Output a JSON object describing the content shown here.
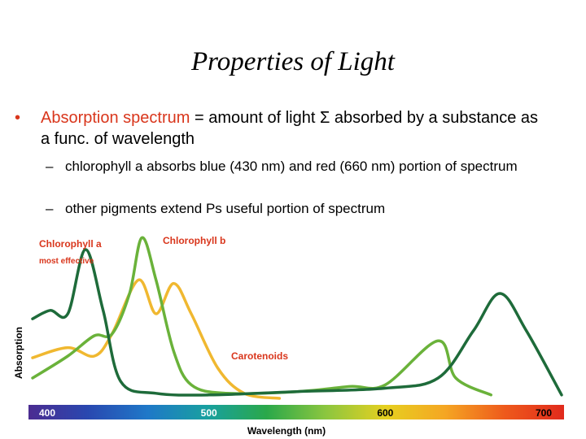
{
  "slide": {
    "title": "Properties of Light",
    "bullet1": {
      "highlight": "Absorption spectrum",
      "rest": " = amount of light Σ absorbed by a substance as a func. of wavelength"
    },
    "sub_bullets": [
      "chlorophyll a absorbs blue (430 nm) and red (660 nm) portion of spectrum",
      "other pigments extend Ps useful portion of spectrum"
    ],
    "dash": "–",
    "bullet_glyph": "•"
  },
  "chart_data": {
    "type": "line",
    "xlabel": "Wavelength (nm)",
    "ylabel": "Absorption",
    "x_ticks": [
      "400",
      "500",
      "600",
      "700"
    ],
    "xlim": [
      400,
      700
    ],
    "series": [
      {
        "name": "Chlorophyll a",
        "note": "most effective",
        "color": "#1e6b3a",
        "points": [
          [
            400,
            0.47
          ],
          [
            410,
            0.52
          ],
          [
            420,
            0.5
          ],
          [
            430,
            0.88
          ],
          [
            440,
            0.52
          ],
          [
            450,
            0.1
          ],
          [
            470,
            0.03
          ],
          [
            500,
            0.02
          ],
          [
            550,
            0.04
          ],
          [
            600,
            0.06
          ],
          [
            630,
            0.12
          ],
          [
            650,
            0.4
          ],
          [
            665,
            0.62
          ],
          [
            680,
            0.4
          ],
          [
            700,
            0.02
          ]
        ]
      },
      {
        "name": "Chlorophyll b",
        "color": "#6ab23a",
        "points": [
          [
            400,
            0.12
          ],
          [
            420,
            0.25
          ],
          [
            435,
            0.37
          ],
          [
            445,
            0.38
          ],
          [
            455,
            0.62
          ],
          [
            462,
            0.95
          ],
          [
            470,
            0.7
          ],
          [
            480,
            0.28
          ],
          [
            490,
            0.08
          ],
          [
            510,
            0.03
          ],
          [
            550,
            0.04
          ],
          [
            580,
            0.07
          ],
          [
            600,
            0.08
          ],
          [
            630,
            0.34
          ],
          [
            640,
            0.12
          ],
          [
            660,
            0.02
          ]
        ]
      },
      {
        "name": "Carotenoids",
        "color": "#f0b830",
        "points": [
          [
            400,
            0.24
          ],
          [
            420,
            0.3
          ],
          [
            435,
            0.25
          ],
          [
            445,
            0.38
          ],
          [
            460,
            0.7
          ],
          [
            470,
            0.5
          ],
          [
            480,
            0.68
          ],
          [
            490,
            0.5
          ],
          [
            505,
            0.18
          ],
          [
            520,
            0.03
          ],
          [
            540,
            0.0
          ]
        ]
      }
    ],
    "spectrum_colors": [
      "#4b2c91",
      "#2948b0",
      "#1f78c8",
      "#18a0a0",
      "#2aa84a",
      "#8cc63f",
      "#e6d020",
      "#f5a623",
      "#ee5a1c",
      "#e12a1c"
    ]
  }
}
